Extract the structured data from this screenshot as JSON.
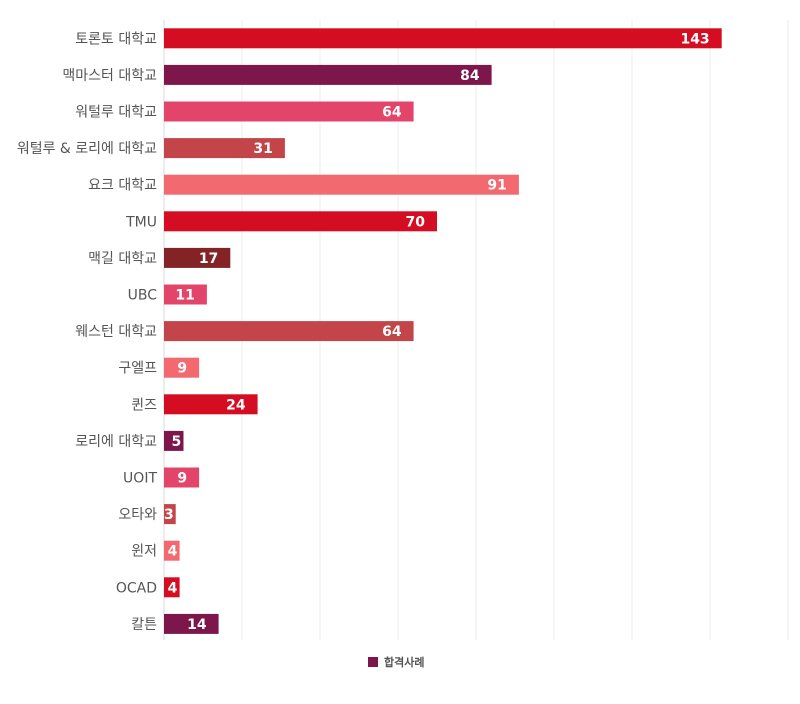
{
  "chart_data": {
    "type": "bar",
    "orientation": "horizontal",
    "categories": [
      "토론토 대학교",
      "맥마스터 대학교",
      "워털루 대학교",
      "워털루 & 로리에 대학교",
      "요크 대학교",
      "TMU",
      "맥길 대학교",
      "UBC",
      "웨스턴 대학교",
      "구엘프",
      "퀸즈",
      "로리에 대학교",
      "UOIT",
      "오타와",
      "윈저",
      "OCAD",
      "칼튼"
    ],
    "series": [
      {
        "name": "합격사례",
        "values": [
          143,
          84,
          64,
          31,
          91,
          70,
          17,
          11,
          64,
          9,
          24,
          5,
          9,
          3,
          4,
          4,
          14
        ]
      }
    ],
    "bar_colors": [
      "#d50d22",
      "#7d164b",
      "#e3456a",
      "#c34549",
      "#f2696f",
      "#d50d22",
      "#832326",
      "#e3456a",
      "#c34549",
      "#f2696f",
      "#d50d22",
      "#7d164b",
      "#e3456a",
      "#c34549",
      "#f2696f",
      "#d50d22",
      "#7d164b"
    ],
    "legend_color": "#7d164b",
    "xlim": [
      0,
      160
    ],
    "grid": true,
    "legend_position": "bottom-center"
  }
}
